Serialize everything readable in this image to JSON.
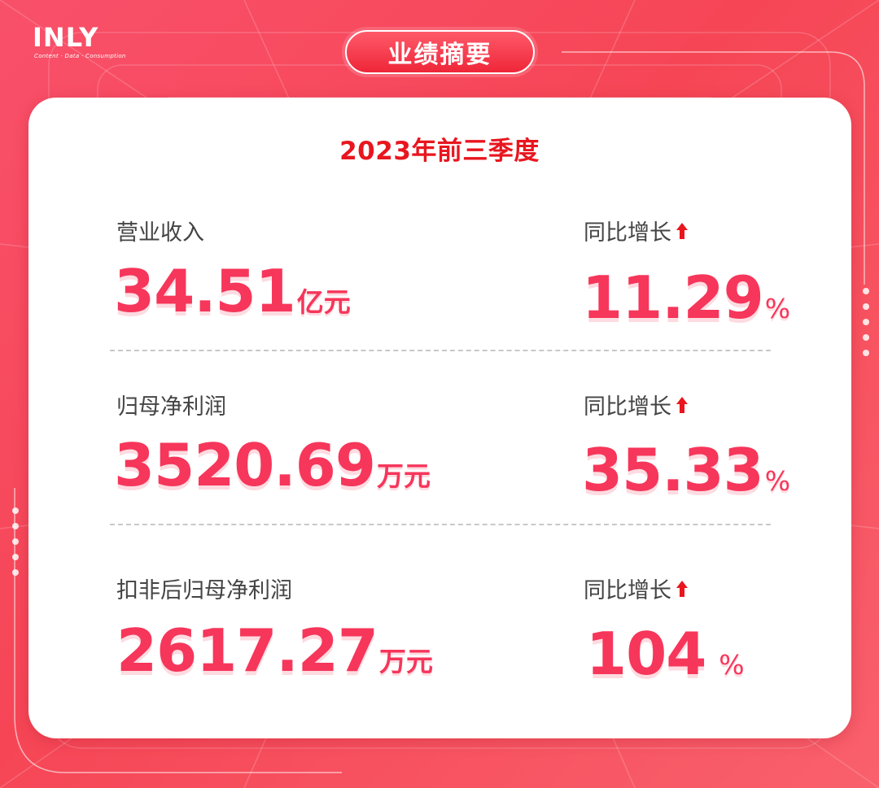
{
  "brand": {
    "logo_text": "INLY",
    "tagline": "Content · Data · Consumption"
  },
  "header": {
    "title": "业绩摘要"
  },
  "card": {
    "period": "2023年前三季度",
    "metrics": [
      {
        "label": "营业收入",
        "value": "34.51",
        "unit": "亿元",
        "growth_label": "同比增长",
        "growth_value": "11.29",
        "growth_unit": "%"
      },
      {
        "label": "归母净利润",
        "value": "3520.69",
        "unit": "万元",
        "growth_label": "同比增长",
        "growth_value": "35.33",
        "growth_unit": "%"
      },
      {
        "label": "扣非后归母净利润",
        "value": "2617.27",
        "unit": "万元",
        "growth_label": "同比增长",
        "growth_value": "104",
        "growth_unit": "%"
      }
    ]
  },
  "icons": {
    "growth": "arrow-up-icon"
  },
  "colors": {
    "background": "#f7475c",
    "accent": "#f6365a",
    "period": "#e8161f",
    "label": "#444444",
    "arrow": "#e8161f"
  }
}
